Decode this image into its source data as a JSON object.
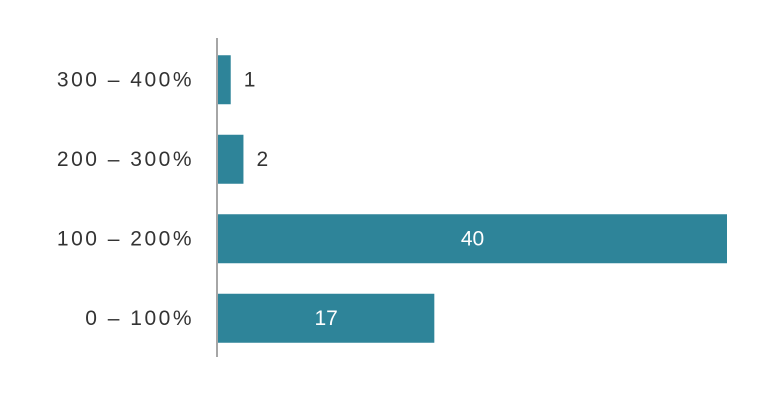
{
  "chart_data": {
    "type": "bar",
    "orientation": "horizontal",
    "categories": [
      "300 – 400%",
      "200 – 300%",
      "100 – 200%",
      "0 – 100%"
    ],
    "values": [
      1,
      2,
      40,
      17
    ],
    "color": "#2e8499"
  }
}
